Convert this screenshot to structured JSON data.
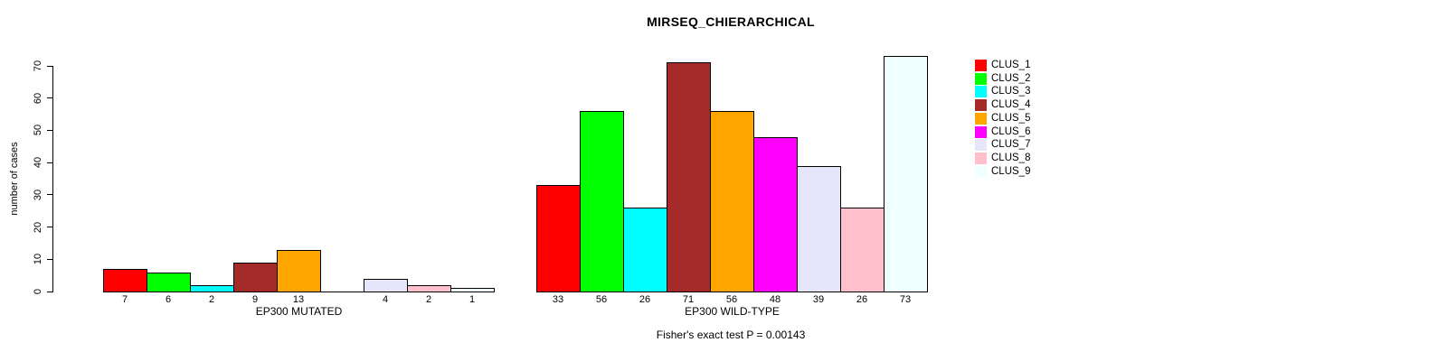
{
  "title": "MIRSEQ_CHIERARCHICAL",
  "footer": "Fisher's exact test P = 0.00143",
  "y_axis": {
    "label": "number of cases",
    "ticks": [
      0,
      10,
      20,
      30,
      40,
      50,
      60,
      70
    ]
  },
  "legend": {
    "position": "right",
    "entries": [
      {
        "label": "CLUS_1",
        "color": "#FF0000"
      },
      {
        "label": "CLUS_2",
        "color": "#00FF00"
      },
      {
        "label": "CLUS_3",
        "color": "#00FFFF"
      },
      {
        "label": "CLUS_4",
        "color": "#A52A2A"
      },
      {
        "label": "CLUS_5",
        "color": "#FFA500"
      },
      {
        "label": "CLUS_6",
        "color": "#FF00FF"
      },
      {
        "label": "CLUS_7",
        "color": "#E6E6FA"
      },
      {
        "label": "CLUS_8",
        "color": "#FFC0CB"
      },
      {
        "label": "CLUS_9",
        "color": "#F0FFFF"
      }
    ]
  },
  "chart_data": {
    "type": "bar",
    "title": "MIRSEQ_CHIERARCHICAL",
    "xlabel": "",
    "ylabel": "number of cases",
    "ylim": [
      0,
      73
    ],
    "y_ticks": [
      0,
      10,
      20,
      30,
      40,
      50,
      60,
      70
    ],
    "grid": false,
    "legend_position": "right",
    "clusters": [
      "CLUS_1",
      "CLUS_2",
      "CLUS_3",
      "CLUS_4",
      "CLUS_5",
      "CLUS_6",
      "CLUS_7",
      "CLUS_8",
      "CLUS_9"
    ],
    "colors": [
      "#FF0000",
      "#00FF00",
      "#00FFFF",
      "#A52A2A",
      "#FFA500",
      "#FF00FF",
      "#E6E6FA",
      "#FFC0CB",
      "#F0FFFF"
    ],
    "groups": [
      {
        "label": "EP300 MUTATED",
        "values": [
          7,
          6,
          2,
          9,
          13,
          0,
          4,
          2,
          1
        ],
        "bar_labels": [
          "7",
          "6",
          "2",
          "9",
          "13",
          "",
          "4",
          "2",
          "1"
        ]
      },
      {
        "label": "EP300 WILD-TYPE",
        "values": [
          33,
          56,
          26,
          71,
          56,
          48,
          39,
          26,
          73
        ],
        "bar_labels": [
          "33",
          "56",
          "26",
          "71",
          "56",
          "48",
          "39",
          "26",
          "73"
        ]
      }
    ],
    "annotation": "Fisher's exact test P = 0.00143"
  }
}
